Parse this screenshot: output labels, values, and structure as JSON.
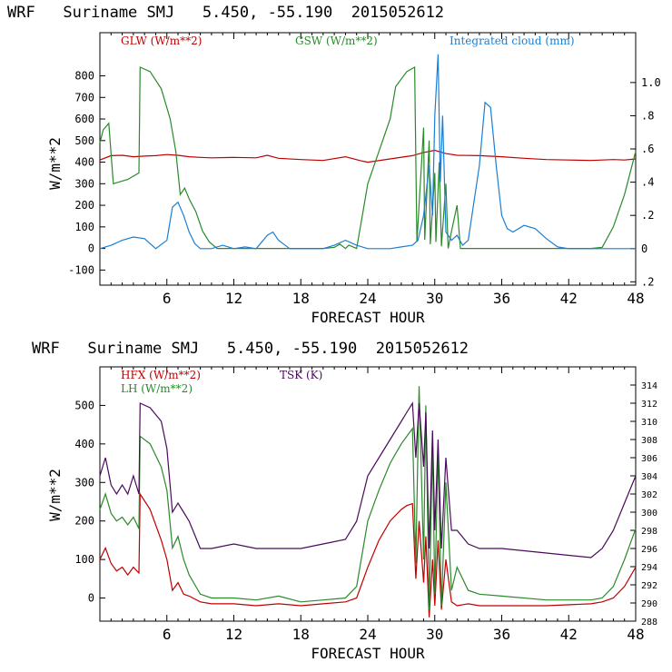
{
  "chart_data": [
    {
      "type": "line",
      "title": "WRF   Suriname SMJ   5.450, -55.190  2015052612",
      "xlabel": "FORECAST HOUR",
      "ylabel": "W/m**2",
      "xlim": [
        0,
        48
      ],
      "ylim": [
        -170,
        1000
      ],
      "xticks": [
        6,
        12,
        18,
        24,
        30,
        36,
        42,
        48
      ],
      "yticks": [
        -100,
        0,
        100,
        200,
        300,
        400,
        500,
        600,
        700,
        800
      ],
      "y2label": "Integrated cloud (mm)",
      "y2lim": [
        -0.22,
        1.3
      ],
      "y2ticks": [
        -0.2,
        0,
        0.2,
        0.4,
        0.6,
        0.8,
        1.0
      ],
      "y2ticklabels": [
        ".2",
        "0",
        ".2",
        ".4",
        ".6",
        ".8",
        "1.0"
      ],
      "series": [
        {
          "name": "GLW (W/m**2)",
          "axis": "left",
          "color": "#c00000",
          "x": [
            0,
            1,
            2,
            3,
            4,
            5,
            6,
            7,
            8,
            9,
            10,
            12,
            14,
            15,
            16,
            18,
            20,
            22,
            23.5,
            24,
            26,
            28,
            29,
            30,
            31,
            32,
            34,
            36,
            38,
            40,
            42,
            44,
            46,
            47,
            48
          ],
          "y": [
            410,
            430,
            432,
            425,
            428,
            430,
            435,
            432,
            425,
            422,
            420,
            422,
            420,
            432,
            418,
            412,
            408,
            425,
            405,
            400,
            415,
            430,
            445,
            455,
            440,
            432,
            430,
            425,
            418,
            412,
            410,
            408,
            412,
            410,
            415
          ]
        },
        {
          "name": "GSW (W/m**2)",
          "axis": "left",
          "color": "#2a8a2a",
          "x": [
            0,
            0.3,
            0.8,
            1.2,
            2.5,
            3.5,
            3.6,
            4.5,
            5.5,
            6.3,
            6.8,
            7.2,
            7.6,
            8.0,
            8.6,
            9.2,
            9.8,
            10.5,
            20,
            21,
            21.5,
            22,
            22.3,
            23,
            23.5,
            24,
            25,
            26,
            26.5,
            27.5,
            28.2,
            28.4,
            29,
            29.1,
            29.5,
            29.6,
            30,
            30.1,
            30.4,
            30.6,
            31,
            31.2,
            31.5,
            32,
            32.3,
            33,
            34,
            44,
            45,
            46,
            47,
            48
          ],
          "y": [
            490,
            550,
            580,
            300,
            320,
            350,
            840,
            820,
            740,
            600,
            450,
            250,
            280,
            230,
            170,
            80,
            30,
            0,
            0,
            5,
            20,
            0,
            15,
            0,
            150,
            300,
            450,
            600,
            750,
            820,
            840,
            30,
            560,
            40,
            500,
            20,
            350,
            30,
            400,
            10,
            300,
            0,
            80,
            200,
            0,
            0,
            0,
            0,
            5,
            100,
            250,
            450
          ]
        },
        {
          "name": "Integrated cloud (mm)",
          "axis": "right",
          "color": "#1a7fd4",
          "x": [
            0,
            1,
            2,
            3,
            4,
            5,
            6,
            6.5,
            7,
            7.5,
            8,
            8.5,
            9,
            10,
            11,
            12,
            13,
            14,
            15,
            15.5,
            16,
            17,
            18,
            20,
            21,
            22,
            23,
            24,
            26,
            27,
            28,
            28.5,
            29,
            29.5,
            29.8,
            30,
            30.3,
            30.5,
            30.7,
            31,
            31.5,
            32,
            32.5,
            33,
            34,
            34.5,
            35,
            35.5,
            36,
            36.5,
            37,
            38,
            39,
            40,
            41,
            42,
            44,
            48
          ],
          "y": [
            0,
            0.02,
            0.05,
            0.07,
            0.06,
            0.0,
            0.05,
            0.25,
            0.28,
            0.2,
            0.1,
            0.03,
            0,
            0,
            0.02,
            0.0,
            0.01,
            0,
            0.08,
            0.1,
            0.05,
            0,
            0,
            0,
            0.02,
            0.05,
            0.02,
            0,
            0,
            0.01,
            0.02,
            0.05,
            0.2,
            0.5,
            0.2,
            0.8,
            1.17,
            0.4,
            0.8,
            0.1,
            0.05,
            0.08,
            0.02,
            0.05,
            0.5,
            0.88,
            0.85,
            0.5,
            0.2,
            0.12,
            0.1,
            0.14,
            0.12,
            0.06,
            0.01,
            0,
            0,
            0
          ]
        }
      ]
    },
    {
      "type": "line",
      "title": "WRF   Suriname SMJ   5.450, -55.190  2015052612",
      "xlabel": "FORECAST HOUR",
      "ylabel": "W/m**2",
      "xlim": [
        0,
        48
      ],
      "ylim": [
        -60,
        600
      ],
      "xticks": [
        6,
        12,
        18,
        24,
        30,
        36,
        42,
        48
      ],
      "yticks": [
        0,
        100,
        200,
        300,
        400,
        500
      ],
      "y2label": "TSK (K)",
      "y2lim": [
        288,
        316
      ],
      "y2ticks": [
        288,
        290,
        292,
        294,
        296,
        298,
        300,
        302,
        304,
        306,
        308,
        310,
        312,
        314
      ],
      "y2ticklabels": [
        "288",
        "290",
        "292",
        "294",
        "296",
        "298",
        "300",
        "302",
        "304",
        "306",
        "308",
        "310",
        "312",
        "314"
      ],
      "series": [
        {
          "name": "HFX (W/m**2)",
          "axis": "left",
          "color": "#c00000",
          "x": [
            0,
            0.5,
            1,
            1.5,
            2,
            2.5,
            3,
            3.5,
            3.6,
            4.5,
            5.5,
            6,
            6.5,
            7,
            7.5,
            8,
            9,
            10,
            12,
            14,
            16,
            18,
            20,
            22,
            23,
            24,
            25,
            26,
            27,
            27.5,
            28,
            28.3,
            28.6,
            29,
            29.2,
            29.5,
            29.8,
            30,
            30.3,
            30.6,
            31,
            31.5,
            32,
            33,
            34,
            36,
            40,
            44,
            45,
            46,
            47,
            48
          ],
          "y": [
            100,
            130,
            90,
            70,
            80,
            60,
            80,
            65,
            270,
            230,
            150,
            100,
            20,
            40,
            10,
            5,
            -10,
            -15,
            -15,
            -20,
            -15,
            -20,
            -15,
            -10,
            0,
            80,
            150,
            200,
            230,
            240,
            245,
            50,
            200,
            40,
            160,
            -50,
            100,
            -20,
            150,
            -30,
            100,
            -10,
            -20,
            -15,
            -20,
            -20,
            -20,
            -15,
            -10,
            0,
            30,
            80
          ]
        },
        {
          "name": "LH (W/m**2)",
          "axis": "left",
          "color": "#2a8a2a",
          "x": [
            0,
            0.5,
            1,
            1.5,
            2,
            2.5,
            3,
            3.5,
            3.6,
            4.5,
            5.5,
            6,
            6.5,
            7,
            7.5,
            8,
            9,
            10,
            12,
            14,
            16,
            18,
            20,
            22,
            23,
            24,
            25,
            26,
            27,
            27.5,
            28,
            28.3,
            28.6,
            29,
            29.2,
            29.5,
            29.8,
            30,
            30.3,
            30.6,
            31,
            31.5,
            32,
            33,
            34,
            36,
            40,
            44,
            45,
            46,
            47,
            48
          ],
          "y": [
            230,
            270,
            220,
            200,
            210,
            190,
            210,
            180,
            420,
            400,
            340,
            280,
            130,
            160,
            100,
            60,
            10,
            0,
            0,
            -5,
            5,
            -10,
            -5,
            0,
            30,
            200,
            280,
            350,
            400,
            420,
            440,
            90,
            550,
            100,
            500,
            -30,
            400,
            10,
            380,
            -20,
            300,
            20,
            80,
            20,
            10,
            5,
            -5,
            -5,
            0,
            30,
            100,
            180
          ]
        },
        {
          "name": "TSK (K)",
          "axis": "right",
          "color": "#4a0a5a",
          "x": [
            0,
            0.5,
            1,
            1.5,
            2,
            2.5,
            3,
            3.5,
            3.6,
            4.5,
            5.5,
            6,
            6.5,
            7,
            7.5,
            8,
            9,
            10,
            12,
            14,
            16,
            18,
            20,
            22,
            23,
            24,
            25,
            26,
            27,
            27.5,
            28,
            28.3,
            28.6,
            29,
            29.2,
            29.5,
            29.8,
            30,
            30.3,
            30.6,
            31,
            31.5,
            32,
            33,
            34,
            36,
            40,
            44,
            45,
            46,
            47,
            48
          ],
          "y": [
            304,
            306,
            303,
            302,
            303,
            302,
            304,
            302,
            312,
            311.5,
            310,
            307,
            300,
            301,
            300,
            299,
            296,
            296,
            296.5,
            296,
            296,
            296,
            296.5,
            297,
            299,
            304,
            306,
            308,
            310,
            311,
            312,
            306,
            312,
            305,
            311,
            296,
            309,
            298,
            308,
            296,
            306,
            298,
            298,
            296.5,
            296,
            296,
            295.5,
            295,
            296,
            298,
            301,
            304
          ]
        }
      ]
    }
  ]
}
